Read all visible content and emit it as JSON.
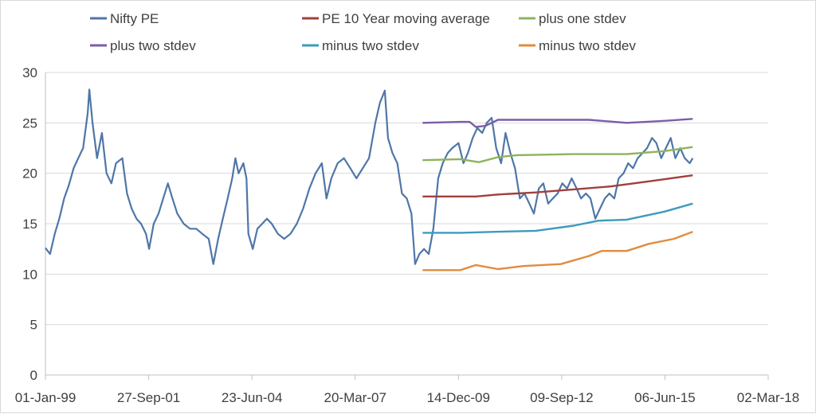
{
  "chart_data": {
    "type": "line",
    "title": "",
    "xlabel": "",
    "ylabel": "",
    "ylim": [
      0,
      30
    ],
    "yticks": [
      0,
      5,
      10,
      15,
      20,
      25,
      30
    ],
    "xlim": [
      "1999-01-01",
      "2018-03-02"
    ],
    "xticks": [
      {
        "date": "1999-01-01",
        "label": "01-Jan-99"
      },
      {
        "date": "2001-09-27",
        "label": "27-Sep-01"
      },
      {
        "date": "2004-06-23",
        "label": "23-Jun-04"
      },
      {
        "date": "2007-03-20",
        "label": "20-Mar-07"
      },
      {
        "date": "2009-12-14",
        "label": "14-Dec-09"
      },
      {
        "date": "2012-09-09",
        "label": "09-Sep-12"
      },
      {
        "date": "2015-06-06",
        "label": "06-Jun-15"
      },
      {
        "date": "2018-03-02",
        "label": "02-Mar-18"
      }
    ],
    "grid": "horizontal",
    "legend_position": "top",
    "series": [
      {
        "name": "Nifty PE",
        "color": "#4f76a8",
        "points": [
          [
            "1999-01-01",
            12.6
          ],
          [
            "1999-02-15",
            12.0
          ],
          [
            "1999-04-01",
            14.0
          ],
          [
            "1999-05-15",
            15.5
          ],
          [
            "1999-07-01",
            17.5
          ],
          [
            "1999-08-15",
            18.8
          ],
          [
            "1999-10-01",
            20.5
          ],
          [
            "1999-11-15",
            21.5
          ],
          [
            "2000-01-01",
            22.5
          ],
          [
            "2000-02-15",
            26.0
          ],
          [
            "2000-03-01",
            28.3
          ],
          [
            "2000-04-01",
            25.0
          ],
          [
            "2000-05-15",
            21.5
          ],
          [
            "2000-07-01",
            24.0
          ],
          [
            "2000-08-15",
            20.0
          ],
          [
            "2000-10-01",
            19.0
          ],
          [
            "2000-11-15",
            21.0
          ],
          [
            "2001-01-15",
            21.5
          ],
          [
            "2001-03-01",
            18.0
          ],
          [
            "2001-04-15",
            16.5
          ],
          [
            "2001-06-01",
            15.5
          ],
          [
            "2001-07-15",
            15.0
          ],
          [
            "2001-09-01",
            14.0
          ],
          [
            "2001-10-01",
            12.5
          ],
          [
            "2001-11-15",
            15.0
          ],
          [
            "2002-01-01",
            16.0
          ],
          [
            "2002-02-15",
            17.5
          ],
          [
            "2002-04-01",
            19.0
          ],
          [
            "2002-05-15",
            17.5
          ],
          [
            "2002-07-01",
            16.0
          ],
          [
            "2002-09-01",
            15.0
          ],
          [
            "2002-11-01",
            14.5
          ],
          [
            "2003-01-01",
            14.5
          ],
          [
            "2003-03-01",
            14.0
          ],
          [
            "2003-05-01",
            13.5
          ],
          [
            "2003-06-15",
            11.0
          ],
          [
            "2003-08-01",
            13.5
          ],
          [
            "2003-09-15",
            15.5
          ],
          [
            "2003-11-01",
            17.5
          ],
          [
            "2003-12-15",
            19.5
          ],
          [
            "2004-01-15",
            21.5
          ],
          [
            "2004-02-15",
            20.0
          ],
          [
            "2004-04-01",
            21.0
          ],
          [
            "2004-05-01",
            19.5
          ],
          [
            "2004-05-20",
            14.0
          ],
          [
            "2004-07-01",
            12.5
          ],
          [
            "2004-08-15",
            14.5
          ],
          [
            "2004-10-01",
            15.0
          ],
          [
            "2004-11-15",
            15.5
          ],
          [
            "2005-01-01",
            15.0
          ],
          [
            "2005-03-01",
            14.0
          ],
          [
            "2005-05-01",
            13.5
          ],
          [
            "2005-07-01",
            14.0
          ],
          [
            "2005-09-01",
            15.0
          ],
          [
            "2005-11-01",
            16.5
          ],
          [
            "2006-01-01",
            18.5
          ],
          [
            "2006-03-01",
            20.0
          ],
          [
            "2006-05-01",
            21.0
          ],
          [
            "2006-06-15",
            17.5
          ],
          [
            "2006-08-01",
            19.5
          ],
          [
            "2006-10-01",
            21.0
          ],
          [
            "2006-12-01",
            21.5
          ],
          [
            "2007-02-01",
            20.5
          ],
          [
            "2007-04-01",
            19.5
          ],
          [
            "2007-06-01",
            20.5
          ],
          [
            "2007-08-01",
            21.5
          ],
          [
            "2007-10-01",
            25.0
          ],
          [
            "2007-11-15",
            27.0
          ],
          [
            "2008-01-01",
            28.2
          ],
          [
            "2008-02-01",
            23.5
          ],
          [
            "2008-03-15",
            22.0
          ],
          [
            "2008-05-01",
            21.0
          ],
          [
            "2008-06-15",
            18.0
          ],
          [
            "2008-08-01",
            17.5
          ],
          [
            "2008-09-15",
            16.0
          ],
          [
            "2008-10-20",
            11.0
          ],
          [
            "2008-12-01",
            12.0
          ],
          [
            "2009-01-15",
            12.5
          ],
          [
            "2009-03-01",
            12.0
          ],
          [
            "2009-04-15",
            14.5
          ],
          [
            "2009-06-01",
            19.5
          ],
          [
            "2009-07-15",
            21.0
          ],
          [
            "2009-09-01",
            22.0
          ],
          [
            "2009-10-15",
            22.5
          ],
          [
            "2009-12-15",
            23.0
          ],
          [
            "2010-02-01",
            21.0
          ],
          [
            "2010-03-15",
            22.0
          ],
          [
            "2010-05-01",
            23.5
          ],
          [
            "2010-06-15",
            24.5
          ],
          [
            "2010-08-01",
            24.0
          ],
          [
            "2010-09-15",
            25.0
          ],
          [
            "2010-11-01",
            25.5
          ],
          [
            "2010-12-15",
            22.5
          ],
          [
            "2011-02-01",
            21.0
          ],
          [
            "2011-03-15",
            24.0
          ],
          [
            "2011-05-01",
            22.0
          ],
          [
            "2011-06-15",
            20.5
          ],
          [
            "2011-08-01",
            17.5
          ],
          [
            "2011-09-15",
            18.0
          ],
          [
            "2011-11-01",
            17.0
          ],
          [
            "2011-12-15",
            16.0
          ],
          [
            "2012-02-01",
            18.5
          ],
          [
            "2012-03-15",
            19.0
          ],
          [
            "2012-05-01",
            17.0
          ],
          [
            "2012-06-15",
            17.5
          ],
          [
            "2012-08-01",
            18.0
          ],
          [
            "2012-09-15",
            19.0
          ],
          [
            "2012-11-01",
            18.5
          ],
          [
            "2012-12-15",
            19.5
          ],
          [
            "2013-02-01",
            18.5
          ],
          [
            "2013-03-15",
            17.5
          ],
          [
            "2013-05-01",
            18.0
          ],
          [
            "2013-06-15",
            17.5
          ],
          [
            "2013-08-01",
            15.5
          ],
          [
            "2013-09-15",
            16.5
          ],
          [
            "2013-11-01",
            17.5
          ],
          [
            "2013-12-15",
            18.0
          ],
          [
            "2014-02-01",
            17.5
          ],
          [
            "2014-03-15",
            19.5
          ],
          [
            "2014-05-01",
            20.0
          ],
          [
            "2014-06-15",
            21.0
          ],
          [
            "2014-08-01",
            20.5
          ],
          [
            "2014-09-15",
            21.5
          ],
          [
            "2014-11-01",
            22.0
          ],
          [
            "2014-12-15",
            22.5
          ],
          [
            "2015-02-01",
            23.5
          ],
          [
            "2015-03-15",
            23.0
          ],
          [
            "2015-05-01",
            21.5
          ],
          [
            "2015-06-15",
            22.5
          ],
          [
            "2015-08-01",
            23.5
          ],
          [
            "2015-09-15",
            21.5
          ],
          [
            "2015-11-01",
            22.5
          ],
          [
            "2015-12-15",
            21.5
          ],
          [
            "2016-02-01",
            21.0
          ],
          [
            "2016-03-01",
            21.5
          ]
        ]
      },
      {
        "name": "PE 10 Year moving average",
        "color": "#a0403c",
        "points": [
          [
            "2009-01-01",
            17.7
          ],
          [
            "2010-06-01",
            17.7
          ],
          [
            "2011-01-01",
            17.9
          ],
          [
            "2012-01-01",
            18.1
          ],
          [
            "2013-01-01",
            18.4
          ],
          [
            "2014-01-01",
            18.7
          ],
          [
            "2015-01-01",
            19.2
          ],
          [
            "2016-03-01",
            19.8
          ]
        ]
      },
      {
        "name": "plus one stdev",
        "color": "#8eb35b",
        "points": [
          [
            "2009-01-01",
            21.3
          ],
          [
            "2010-01-01",
            21.4
          ],
          [
            "2010-07-01",
            21.1
          ],
          [
            "2011-01-01",
            21.6
          ],
          [
            "2011-07-01",
            21.8
          ],
          [
            "2013-01-01",
            21.9
          ],
          [
            "2014-06-01",
            21.9
          ],
          [
            "2015-06-01",
            22.2
          ],
          [
            "2016-03-01",
            22.6
          ]
        ]
      },
      {
        "name": "plus two stdev",
        "color": "#7b5ea7",
        "points": [
          [
            "2009-01-01",
            25.0
          ],
          [
            "2010-01-01",
            25.1
          ],
          [
            "2010-04-01",
            25.1
          ],
          [
            "2010-06-01",
            24.6
          ],
          [
            "2010-09-01",
            24.7
          ],
          [
            "2011-01-01",
            25.3
          ],
          [
            "2013-06-01",
            25.3
          ],
          [
            "2014-06-01",
            25.0
          ],
          [
            "2015-06-01",
            25.2
          ],
          [
            "2016-03-01",
            25.4
          ]
        ]
      },
      {
        "name": "minus two stdev",
        "color": "#3d9bbd",
        "points": [
          [
            "2009-01-01",
            14.1
          ],
          [
            "2010-01-01",
            14.1
          ],
          [
            "2011-01-01",
            14.2
          ],
          [
            "2012-01-01",
            14.3
          ],
          [
            "2013-01-01",
            14.8
          ],
          [
            "2013-09-01",
            15.3
          ],
          [
            "2014-06-01",
            15.4
          ],
          [
            "2015-06-01",
            16.2
          ],
          [
            "2016-03-01",
            17.0
          ]
        ]
      },
      {
        "name": "minus two stdev",
        "color": "#e08c3e",
        "points": [
          [
            "2009-01-01",
            10.4
          ],
          [
            "2010-01-01",
            10.4
          ],
          [
            "2010-06-01",
            10.9
          ],
          [
            "2011-01-01",
            10.5
          ],
          [
            "2011-09-01",
            10.8
          ],
          [
            "2012-09-01",
            11.0
          ],
          [
            "2013-06-01",
            11.8
          ],
          [
            "2013-10-01",
            12.3
          ],
          [
            "2014-06-01",
            12.3
          ],
          [
            "2015-01-01",
            13.0
          ],
          [
            "2015-09-01",
            13.5
          ],
          [
            "2016-03-01",
            14.2
          ]
        ]
      }
    ]
  }
}
